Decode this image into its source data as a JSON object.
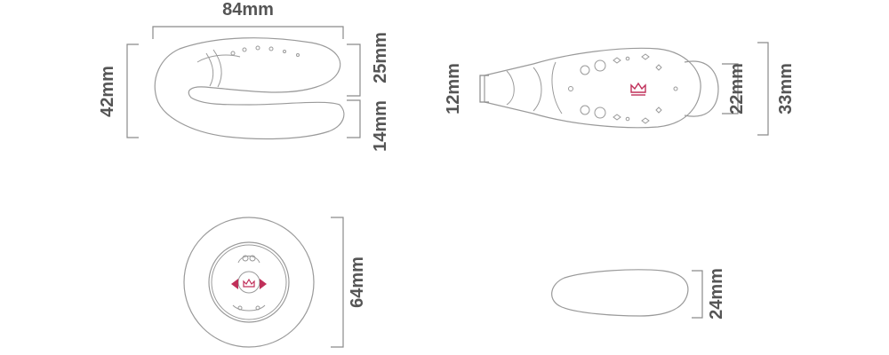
{
  "views": {
    "side": {
      "width_label": "84mm",
      "height_label": "42mm",
      "upper_label": "25mm",
      "lower_label": "14mm"
    },
    "top": {
      "tip_label": "12mm",
      "head_label": "22mm",
      "total_label": "33mm"
    },
    "front": {
      "height_label": "64mm"
    },
    "remote_side": {
      "height_label": "24mm"
    }
  },
  "colors": {
    "outline": "#9a9a9a",
    "text": "#555555",
    "accent": "#c0305a"
  },
  "icons": [
    "crown-logo-icon",
    "left-arrow-icon",
    "right-arrow-icon"
  ]
}
